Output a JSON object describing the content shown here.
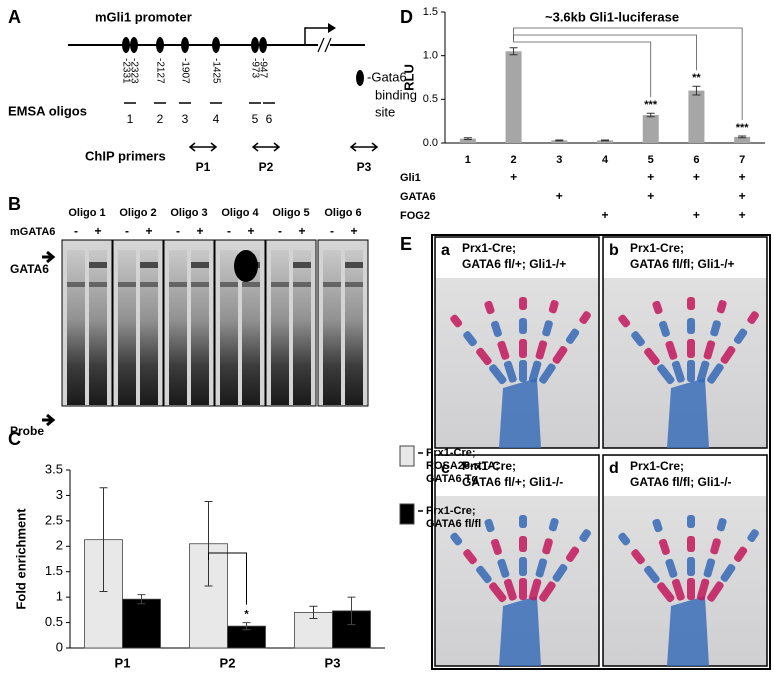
{
  "panel_letters": [
    "A",
    "B",
    "C",
    "D",
    "E"
  ],
  "panel_a": {
    "promoter_label": "mGli1 promoter",
    "sites": [
      "-2331",
      "-2323",
      "-2127",
      "-1907",
      "-1425",
      "-973",
      "-947"
    ],
    "site_legend": [
      "-Gata6",
      "binding",
      "site"
    ],
    "emsa_label": "EMSA oligos",
    "oligos": [
      "1",
      "2",
      "3",
      "4",
      "5",
      "6"
    ],
    "chip_label": "ChIP primers",
    "primers": [
      "P1",
      "P2",
      "P3"
    ]
  },
  "panel_b": {
    "oligos": [
      "Oligo 1",
      "Oligo 2",
      "Oligo 3",
      "Oligo 4",
      "Oligo 5",
      "Oligo 6"
    ],
    "treatment_label": "mGATA6",
    "lane_signs": [
      "-",
      "+"
    ],
    "band_labels": [
      "GATA6",
      "Probe"
    ]
  },
  "chart_data": [
    {
      "type": "bar",
      "ylabel": "Fold enrichment",
      "categories": [
        "P1",
        "P2",
        "P3"
      ],
      "ylim": [
        0,
        3.5
      ],
      "yticks": [
        0,
        0.5,
        1,
        1.5,
        2,
        2.5,
        3,
        3.5
      ],
      "series": [
        {
          "name": "Prx1-Cre; ROSA26-rtTA; GATA6 Tg",
          "color": "#e8e8e8",
          "values": [
            2.13,
            2.05,
            0.7
          ],
          "errors": [
            1.02,
            0.83,
            0.12
          ],
          "significance": [
            null,
            null,
            null
          ]
        },
        {
          "name": "Prx1-Cre; GATA6 fl/fl",
          "color": "#000000",
          "values": [
            0.96,
            0.43,
            0.73
          ],
          "errors": [
            0.09,
            0.07,
            0.27
          ],
          "significance": [
            null,
            "*",
            null
          ]
        }
      ]
    },
    {
      "type": "bar",
      "title": "~3.6kb Gli1-luciferase",
      "ylabel": "RLU",
      "categories": [
        "1",
        "2",
        "3",
        "4",
        "5",
        "6",
        "7"
      ],
      "color": "#a6a6a6",
      "values": [
        0.05,
        1.05,
        0.03,
        0.03,
        0.32,
        0.6,
        0.07
      ],
      "errors": [
        0.01,
        0.04,
        0.005,
        0.005,
        0.02,
        0.05,
        0.01
      ],
      "significance": [
        null,
        null,
        null,
        null,
        "***",
        "**",
        "***"
      ],
      "ylim": [
        0,
        1.5
      ],
      "yticks": [
        {
          "value": 0,
          "label": "0.0"
        },
        0.5,
        {
          "value": 1,
          "label": "1.0"
        },
        1.5
      ],
      "conditions": [
        {
          "name": "Gli1",
          "marks": [
            null,
            "+",
            null,
            null,
            "+",
            "+",
            "+"
          ]
        },
        {
          "name": "GATA6",
          "marks": [
            null,
            null,
            "+",
            null,
            "+",
            null,
            "+"
          ]
        },
        {
          "name": "FOG2",
          "marks": [
            null,
            null,
            null,
            "+",
            null,
            "+",
            "+"
          ]
        }
      ]
    }
  ],
  "panel_e": [
    {
      "letter": "a",
      "lines": [
        "Prx1-Cre;",
        "GATA6 fl/+; Gli1-/+"
      ]
    },
    {
      "letter": "b",
      "lines": [
        "Prx1-Cre;",
        "GATA6 fl/fl; Gli1-/+"
      ]
    },
    {
      "letter": "c",
      "lines": [
        "Prx1-Cre;",
        "GATA6 fl/+; Gli1-/-"
      ]
    },
    {
      "letter": "d",
      "lines": [
        "Prx1-Cre;",
        "GATA6 fl/fl; Gli1-/-"
      ]
    }
  ]
}
